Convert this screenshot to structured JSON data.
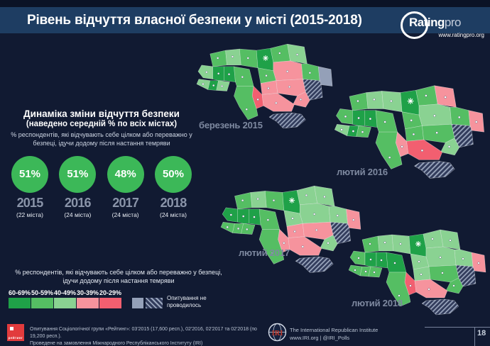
{
  "header": {
    "title": "Рівень відчуття власної безпеки у місті (2015-2018)",
    "logo": {
      "brand": "Rating",
      "brand_suffix": "pro",
      "url": "www.ratingpro.org"
    }
  },
  "panel": {
    "title_accent": "Динаміка",
    "title_rest": " зміни відчуття безпеки",
    "subtitle": "(наведено середній % по всіх містах)",
    "description": "% респондентів, які відчувають себе цілком або переважно у безпеці, ідучи додому після настання темряви",
    "years": [
      {
        "value": "51%",
        "year": "2015",
        "cities": "(22 міста)"
      },
      {
        "value": "51%",
        "year": "2016",
        "cities": "(24 міста)"
      },
      {
        "value": "48%",
        "year": "2017",
        "cities": "(24 міста)"
      },
      {
        "value": "50%",
        "year": "2018",
        "cities": "(24 міста)"
      }
    ],
    "circle_color": "#3cb858"
  },
  "maps": [
    {
      "title": "березень 2015"
    },
    {
      "title": "лютий 2016"
    },
    {
      "title": "лютий 2017"
    },
    {
      "title": "лютий 2018"
    }
  ],
  "legend": {
    "description": "% респондентів, які відчувають себе цілком або переважно у безпеці, ідучи додому після настання темряви",
    "bins": [
      {
        "label": "60-69%",
        "color": "#1fa148"
      },
      {
        "label": "50-59%",
        "color": "#55be63"
      },
      {
        "label": "40-49%",
        "color": "#8ad292"
      },
      {
        "label": "30-39%",
        "color": "#f6939d"
      },
      {
        "label": "20-29%",
        "color": "#f25f70"
      }
    ],
    "no_survey_label": "Опитування не проводилось",
    "no_survey_solid_color": "#94a0b8"
  },
  "footer": {
    "line1": "Опитування Соціологічної групи «Рейтинг»: 03'2015 (17,600 респ.), 02'2016, 02'2017 та 02'2018 (по 19,200 респ.).",
    "line2": "Проведене на замовлення Міжнародного Республіканського Інституту (IRI)",
    "rating_logo_text": "рейтинг",
    "iri_logo_text": "IRI",
    "iri_name": "The International Republican Institute",
    "iri_links": "www.IRI.org | @IRI_Polls",
    "page_number": "18"
  },
  "chart_data": {
    "type": "choropleth",
    "title": "Рівень відчуття власної безпеки у місті (2015-2018)",
    "summary": {
      "type": "kpi-circles",
      "categories": [
        "2015",
        "2016",
        "2017",
        "2018"
      ],
      "values_percent": [
        51,
        51,
        48,
        50
      ],
      "cities_surveyed": [
        22,
        24,
        24,
        24
      ],
      "metric": "середній % відчуття безпеки по всіх містах"
    },
    "legend_bins": [
      "60-69%",
      "50-59%",
      "40-49%",
      "30-39%",
      "20-29%"
    ],
    "maps": [
      {
        "title": "березень 2015",
        "regions": {
          "volyn": "50-59",
          "rivne": "40-49",
          "zhytomyr": "50-59",
          "kyiv": "60-69",
          "chernihiv": "50-59",
          "sumy": "40-49",
          "lviv": "40-49",
          "ternopil": "60-69",
          "khmelnytskyi": "60-69",
          "vinnytsia": "50-59",
          "cherkasy": "50-59",
          "poltava": "30-39",
          "kharkiv": "50-59",
          "luhansk": "gray",
          "donetsk": "na",
          "zakarpattia": "40-49",
          "ivano_frankivsk": "60-69",
          "chernivtsi": "40-49",
          "kirovohrad": "30-39",
          "dnipro": "30-39",
          "zaporizhzhia": "30-39",
          "mykolaiv": "20-29",
          "odesa": "50-59",
          "kherson": "30-39",
          "crimea": "na"
        }
      },
      {
        "title": "лютий 2016",
        "regions": {
          "volyn": "50-59",
          "rivne": "40-49",
          "zhytomyr": "40-49",
          "kyiv": "60-69",
          "chernihiv": "50-59",
          "sumy": "30-39",
          "lviv": "50-59",
          "ternopil": "60-69",
          "khmelnytskyi": "60-69",
          "vinnytsia": "50-59",
          "cherkasy": "50-59",
          "poltava": "40-49",
          "kharkiv": "50-59",
          "luhansk": "30-39",
          "donetsk": "na",
          "zakarpattia": "40-49",
          "ivano_frankivsk": "60-69",
          "chernivtsi": "50-59",
          "kirovohrad": "50-59",
          "dnipro": "50-59",
          "zaporizhzhia": "40-49",
          "mykolaiv": "30-39",
          "odesa": "50-59",
          "kherson": "20-29",
          "crimea": "na"
        }
      },
      {
        "title": "лютий 2017",
        "regions": {
          "volyn": "50-59",
          "rivne": "40-49",
          "zhytomyr": "50-59",
          "kyiv": "60-69",
          "chernihiv": "40-49",
          "sumy": "40-49",
          "lviv": "60-69",
          "ternopil": "60-69",
          "khmelnytskyi": "60-69",
          "vinnytsia": "50-59",
          "cherkasy": "40-49",
          "poltava": "40-49",
          "kharkiv": "40-49",
          "luhansk": "30-39",
          "donetsk": "na",
          "zakarpattia": "50-59",
          "ivano_frankivsk": "50-59",
          "chernivtsi": "50-59",
          "kirovohrad": "30-39",
          "dnipro": "30-39",
          "zaporizhzhia": "40-49",
          "mykolaiv": "30-39",
          "odesa": "50-59",
          "kherson": "30-39",
          "crimea": "na"
        }
      },
      {
        "title": "лютий 2018",
        "regions": {
          "volyn": "50-59",
          "rivne": "40-49",
          "zhytomyr": "40-49",
          "kyiv": "60-69",
          "chernihiv": "40-49",
          "sumy": "40-49",
          "lviv": "50-59",
          "ternopil": "60-69",
          "khmelnytskyi": "60-69",
          "vinnytsia": "60-69",
          "cherkasy": "40-49",
          "poltava": "40-49",
          "kharkiv": "40-49",
          "luhansk": "30-39",
          "donetsk": "na",
          "zakarpattia": "50-59",
          "ivano_frankivsk": "50-59",
          "chernivtsi": "50-59",
          "kirovohrad": "40-49",
          "dnipro": "50-59",
          "zaporizhzhia": "50-59",
          "mykolaiv": "20-29",
          "odesa": "50-59",
          "kherson": "30-39",
          "crimea": "na"
        }
      }
    ]
  }
}
